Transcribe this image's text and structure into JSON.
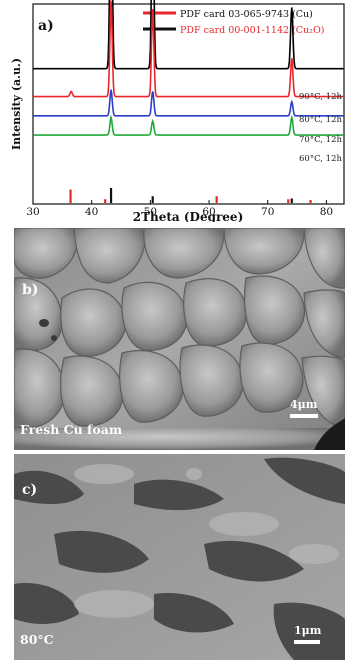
{
  "panel_a": {
    "label": "a)",
    "legend": [
      {
        "text": "PDF card 03-065-9743 (Cu)",
        "color": "#e8262b"
      },
      {
        "text": "PDF card 00-001-1142 (Cu₂O)",
        "color": "#111111"
      }
    ],
    "curve_labels": [
      "90°C, 12h",
      "80°C, 12h",
      "70°C, 12h",
      "60°C, 12h"
    ],
    "colors": {
      "black": "#000000",
      "red": "#e8262b",
      "blue": "#2b3fc8",
      "green": "#20a83a"
    }
  },
  "chart_data": {
    "type": "line",
    "xlabel": "2Theta (Degree)",
    "ylabel": "Intensity (a.u.)",
    "xlim": [
      30,
      83
    ],
    "xticks": [
      30,
      40,
      50,
      60,
      70,
      80
    ],
    "series": [
      {
        "name": "90°C, 12h",
        "color": "#000000",
        "baseline": 0.58,
        "peaks": [
          [
            43.3,
            1.2
          ],
          [
            50.4,
            0.9
          ],
          [
            74.1,
            0.35
          ]
        ]
      },
      {
        "name": "80°C, 12h",
        "color": "#e8262b",
        "baseline": 0.42,
        "peaks": [
          [
            36.5,
            0.03
          ],
          [
            43.3,
            0.55
          ],
          [
            50.4,
            0.5
          ],
          [
            74.1,
            0.22
          ]
        ]
      },
      {
        "name": "70°C, 12h",
        "color": "#2b3fc8",
        "baseline": 0.31,
        "peaks": [
          [
            43.3,
            0.15
          ],
          [
            50.4,
            0.14
          ],
          [
            74.1,
            0.08
          ]
        ]
      },
      {
        "name": "60°C, 12h",
        "color": "#20a83a",
        "baseline": 0.2,
        "peaks": [
          [
            43.3,
            0.1
          ],
          [
            50.4,
            0.08
          ],
          [
            74.1,
            0.1
          ]
        ]
      }
    ],
    "reference_cu": [
      43.3,
      50.4,
      74.1
    ],
    "reference_cu2o": [
      36.4,
      42.3,
      61.3,
      73.5,
      77.3
    ],
    "reference_cu_heights": [
      1.0,
      0.45,
      0.3
    ],
    "reference_cu2o_heights": [
      0.9,
      0.25,
      0.45,
      0.25,
      0.2
    ]
  },
  "panel_b": {
    "label": "b)",
    "caption": "Fresh Cu foam",
    "scale_text": "4μm"
  },
  "panel_c": {
    "label": "c)",
    "caption": "80°C",
    "scale_text": "1μm"
  }
}
